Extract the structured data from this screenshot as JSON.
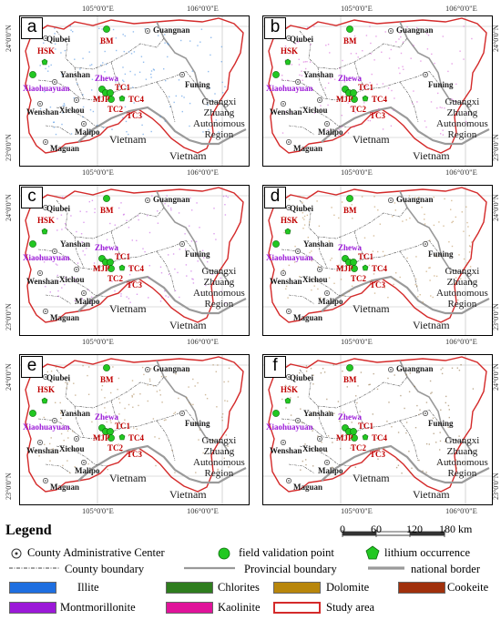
{
  "panels": [
    {
      "letter": "a",
      "sample_color": "#3a86e0"
    },
    {
      "letter": "b",
      "sample_color": "#d455d4"
    },
    {
      "letter": "c",
      "sample_color": "#c04fe0"
    },
    {
      "letter": "d",
      "sample_color": "#b68a4a"
    },
    {
      "letter": "e",
      "sample_color": "#a5804a"
    },
    {
      "letter": "f",
      "sample_color": "#8b6a3a"
    }
  ],
  "map_labels": {
    "qiubei": "Qiubei",
    "guangnan": "Guangnan",
    "bm": "BM",
    "hsk": "HSK",
    "yanshan": "Yanshan",
    "xiaohuayuan": "Xiaohuayuan",
    "zhewa": "Zhewa",
    "tc1": "TC1",
    "mjp": "MJP",
    "tc4": "TC4",
    "tc2": "TC2",
    "tc3": "TC3",
    "wenshan": "Wenshan",
    "xichou": "Xichou",
    "funing": "Funing",
    "malipo": "Malipo",
    "maguan": "Maguan",
    "vietnam": "Vietnam",
    "guangxi": "Guangxi",
    "zhuang": "Zhuang",
    "autonomous": "Autonomous",
    "region": "Region"
  },
  "axes": {
    "x1": "105°0'0\"E",
    "x2": "106°0'0\"E",
    "y1": "24°0'0\"N",
    "y2": "23°0'0\"N"
  },
  "legend": {
    "title": "Legend",
    "county_center": "County  Administrative Center",
    "field_point": "field validation point",
    "lithium": "lithium occurrence",
    "county_boundary": "County boundary",
    "provincial_boundary": "Provincial boundary",
    "national_border": "national border",
    "illite": "Illite",
    "chlorites": "Chlorites",
    "dolomite": "Dolomite",
    "cookeite": "Cookeite",
    "montmorillonite": "Montmorillonite",
    "kaolinite": "Kaolinite",
    "study_area": "Study area"
  },
  "scale": {
    "ticks": [
      "0",
      "60",
      "120",
      "180"
    ],
    "unit": "km"
  },
  "colors": {
    "illite": "#1f6fe0",
    "chlorites": "#2e7d1e",
    "dolomite": "#b8860b",
    "cookeite": "#a0300c",
    "montmorillonite": "#9b19d8",
    "kaolinite": "#e0139a",
    "study_area": "#d42a2a",
    "field_point": "#22c822"
  }
}
